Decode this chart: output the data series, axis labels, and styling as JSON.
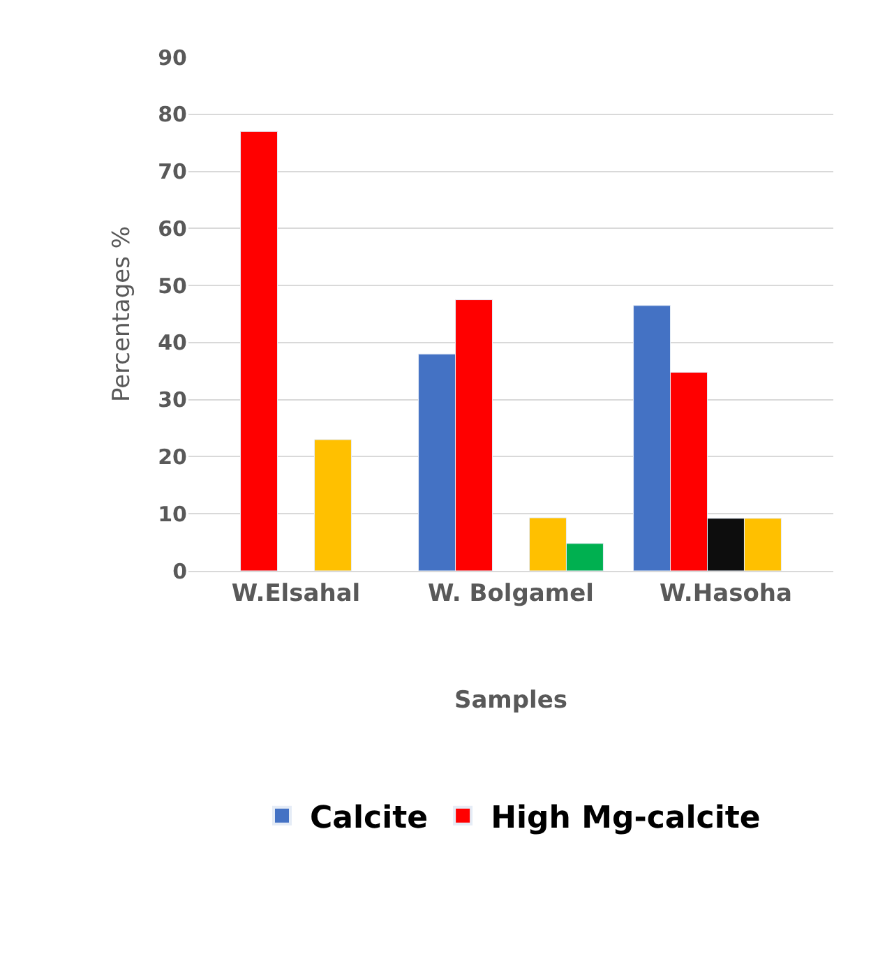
{
  "chart_data": {
    "type": "bar",
    "xlabel": "Samples",
    "ylabel": "Percentages %",
    "categories": [
      "W.Elsahal",
      "W. Bolgamel",
      "W.Hasoha"
    ],
    "series": [
      {
        "name": "Calcite",
        "color": "#4472c4",
        "values": [
          null,
          38,
          46.5
        ]
      },
      {
        "name": "High Mg-calcite",
        "color": "#ff0000",
        "values": [
          77,
          47.5,
          34.8
        ]
      },
      {
        "color": "#0d0d0d",
        "values": [
          null,
          null,
          9.2
        ]
      },
      {
        "color": "#ffc000",
        "values": [
          23,
          9.3,
          9.2
        ]
      },
      {
        "color": "#00b050",
        "values": [
          null,
          4.8,
          null
        ]
      }
    ],
    "ylim": [
      0,
      90
    ],
    "yticks": [
      0,
      10,
      20,
      30,
      40,
      50,
      60,
      70,
      80,
      90
    ],
    "grid": "y",
    "legend": "bottom"
  }
}
